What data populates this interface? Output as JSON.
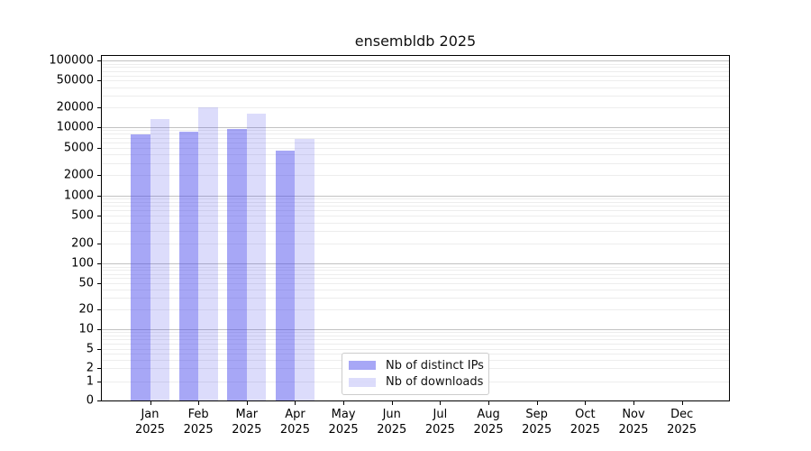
{
  "chart_data": {
    "type": "bar",
    "title": "ensembldb 2025",
    "categories": [
      "Jan 2025",
      "Feb 2025",
      "Mar 2025",
      "Apr 2025",
      "May 2025",
      "Jun 2025",
      "Jul 2025",
      "Aug 2025",
      "Sep 2025",
      "Oct 2025",
      "Nov 2025",
      "Dec 2025"
    ],
    "series": [
      {
        "name": "Nb of distinct IPs",
        "color": "rgba(68,68,236,0.47)",
        "values": [
          7800,
          8600,
          9300,
          4600,
          null,
          null,
          null,
          null,
          null,
          null,
          null,
          null
        ]
      },
      {
        "name": "Nb of downloads",
        "color": "rgba(68,68,236,0.19)",
        "values": [
          13300,
          19800,
          15900,
          6700,
          null,
          null,
          null,
          null,
          null,
          null,
          null,
          null
        ]
      }
    ],
    "xlabel": "",
    "ylabel": "",
    "yscale": "symlog",
    "ylim": [
      0,
      100000
    ],
    "yticks": [
      0,
      1,
      2,
      5,
      10,
      20,
      50,
      100,
      200,
      500,
      1000,
      2000,
      5000,
      10000,
      20000,
      50000,
      100000
    ],
    "grid": true,
    "legend_position": "lower center"
  }
}
